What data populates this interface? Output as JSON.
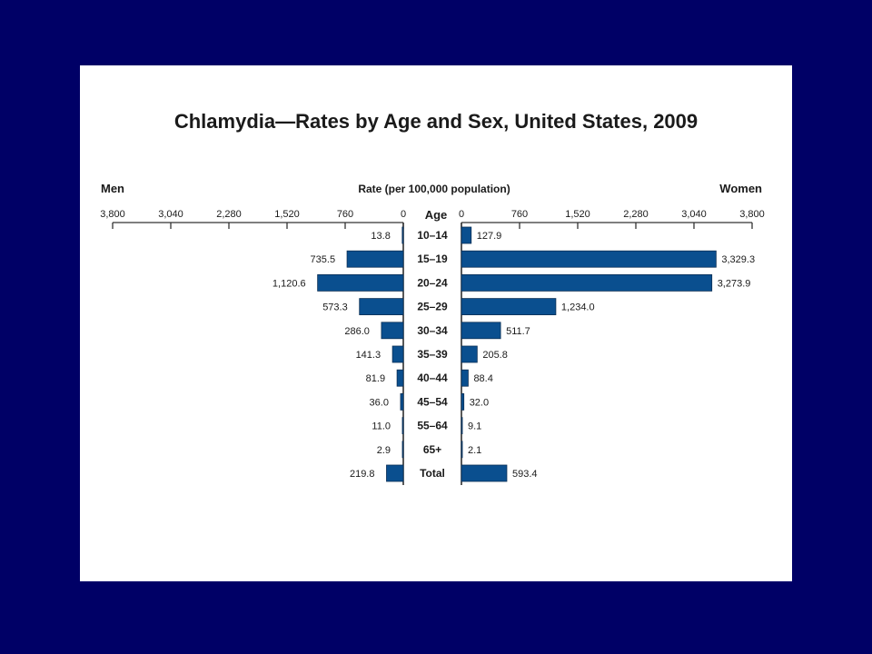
{
  "colors": {
    "background": "#000066",
    "panel": "#ffffff",
    "bar_fill": "#0a4f8f",
    "bar_stroke": "#0b2f55",
    "text": "#1a1a1a"
  },
  "chart_data": {
    "type": "bar",
    "orientation": "horizontal-butterfly",
    "title": "Chlamydia—Rates by Age and Sex, United States, 2009",
    "axis_title": "Rate (per 100,000 population)",
    "left_label": "Men",
    "right_label": "Women",
    "category_header": "Age",
    "categories": [
      "10–14",
      "15–19",
      "20–24",
      "25–29",
      "30–34",
      "35–39",
      "40–44",
      "45–54",
      "55–64",
      "65+",
      "Total"
    ],
    "series": [
      {
        "name": "Men",
        "values": [
          13.8,
          735.5,
          1120.6,
          573.3,
          286.0,
          141.3,
          81.9,
          36.0,
          11.0,
          2.9,
          219.8
        ],
        "labels": [
          "13.8",
          "735.5",
          "1,120.6",
          "573.3",
          "286.0",
          "141.3",
          "81.9",
          "36.0",
          "11.0",
          "2.9",
          "219.8"
        ]
      },
      {
        "name": "Women",
        "values": [
          127.9,
          3329.3,
          3273.9,
          1234.0,
          511.7,
          205.8,
          88.4,
          32.0,
          9.1,
          2.1,
          593.4
        ],
        "labels": [
          "127.9",
          "3,329.3",
          "3,273.9",
          "1,234.0",
          "511.7",
          "205.8",
          "88.4",
          "32.0",
          "9.1",
          "2.1",
          "593.4"
        ]
      }
    ],
    "ticks": [
      0,
      760,
      1520,
      2280,
      3040,
      3800
    ],
    "tick_labels": [
      "0",
      "760",
      "1,520",
      "2,280",
      "3,040",
      "3,800"
    ],
    "xlim": [
      0,
      3800
    ],
    "grid": false,
    "legend": "none"
  }
}
